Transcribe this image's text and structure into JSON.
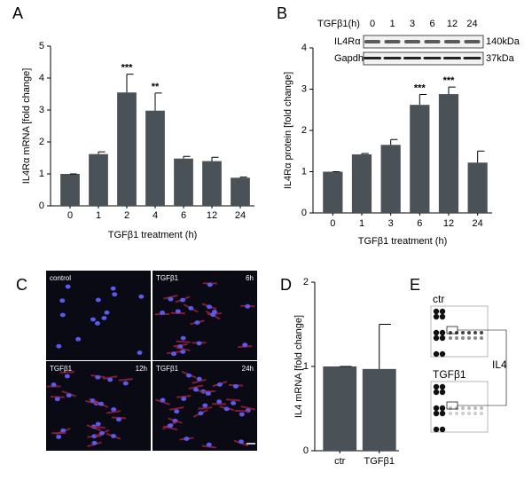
{
  "chart_data": [
    {
      "type": "bar",
      "panel_label": "A",
      "ylabel": "IL4Rα mRNA [fold change]",
      "xlabel": "TGFβ1 treatment (h)",
      "categories": [
        "0",
        "1",
        "2",
        "4",
        "6",
        "12",
        "24"
      ],
      "values": [
        1,
        1.62,
        3.55,
        2.98,
        1.48,
        1.4,
        0.88
      ],
      "errors": [
        0,
        0.07,
        0.57,
        0.55,
        0.07,
        0.12,
        0.02
      ],
      "annotations": [
        null,
        null,
        "***",
        "**",
        null,
        null,
        null
      ],
      "color": "#4a5258",
      "ylim": [
        0,
        5
      ],
      "yticks": [
        0,
        1,
        2,
        3,
        4,
        5
      ]
    },
    {
      "type": "bar",
      "panel_label": "B",
      "ylabel": "IL4Rα protein [fold change]",
      "xlabel": "TGFβ1 treatment (h)",
      "categories": [
        "0",
        "1",
        "3",
        "6",
        "12",
        "24"
      ],
      "values": [
        1,
        1.42,
        1.65,
        2.62,
        2.88,
        1.22
      ],
      "errors": [
        0,
        0.02,
        0.13,
        0.25,
        0.17,
        0.28
      ],
      "annotations": [
        null,
        null,
        null,
        "***",
        "***",
        null
      ],
      "color": "#4a5258",
      "ylim": [
        0,
        4
      ],
      "yticks": [
        0,
        1,
        2,
        3,
        4
      ]
    },
    {
      "type": "bar",
      "panel_label": "D",
      "ylabel": "IL4 mRNA [fold change]",
      "categories": [
        "ctr",
        "TGFβ1"
      ],
      "values": [
        1,
        0.97
      ],
      "errors": [
        0,
        0.53
      ],
      "color": "#4a5258",
      "ylim": [
        0,
        2
      ],
      "yticks": [
        0,
        1,
        2
      ]
    }
  ],
  "blot": {
    "header": "TGFβ1(h)",
    "lanes": [
      "0",
      "1",
      "3",
      "6",
      "12",
      "24"
    ],
    "rows": [
      {
        "name": "IL4Rα",
        "size": "140kDa"
      },
      {
        "name": "Gapdh",
        "size": "37kDa"
      }
    ]
  },
  "panel_c": {
    "label": "C",
    "images": [
      {
        "label": "control"
      },
      {
        "label": "TGFβ1",
        "time": "6h"
      },
      {
        "label": "TGFβ1",
        "time": "12h"
      },
      {
        "label": "TGFβ1",
        "time": "24h"
      }
    ]
  },
  "panel_e": {
    "label": "E",
    "arrays": [
      "ctr",
      "TGFβ1"
    ],
    "target": "IL4"
  }
}
